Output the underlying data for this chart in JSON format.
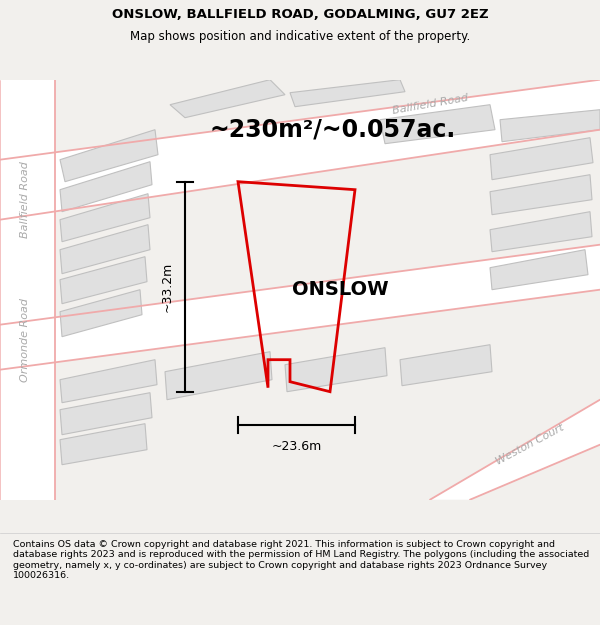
{
  "title": "ONSLOW, BALLFIELD ROAD, GODALMING, GU7 2EZ",
  "subtitle": "Map shows position and indicative extent of the property.",
  "area_text": "~230m²/~0.057ac.",
  "property_label": "ONSLOW",
  "dim_height": "~33.2m",
  "dim_width": "~23.6m",
  "footer": "Contains OS data © Crown copyright and database right 2021. This information is subject to Crown copyright and database rights 2023 and is reproduced with the permission of HM Land Registry. The polygons (including the associated geometry, namely x, y co-ordinates) are subject to Crown copyright and database rights 2023 Ordnance Survey 100026316.",
  "bg_color": "#f2f0ed",
  "map_bg": "#f2f0ed",
  "road_color": "#ffffff",
  "building_color": "#e0e0e0",
  "building_edge": "#c0c0c0",
  "road_line_color": "#f0aaaa",
  "property_color": "#dd0000",
  "dim_line_color": "#000000",
  "road_label_color": "#aaaaaa",
  "title_color": "#000000",
  "footer_color": "#000000",
  "title_fontsize": 9.5,
  "subtitle_fontsize": 8.5,
  "area_fontsize": 17,
  "label_fontsize": 14,
  "dim_fontsize": 9,
  "footer_fontsize": 6.8
}
